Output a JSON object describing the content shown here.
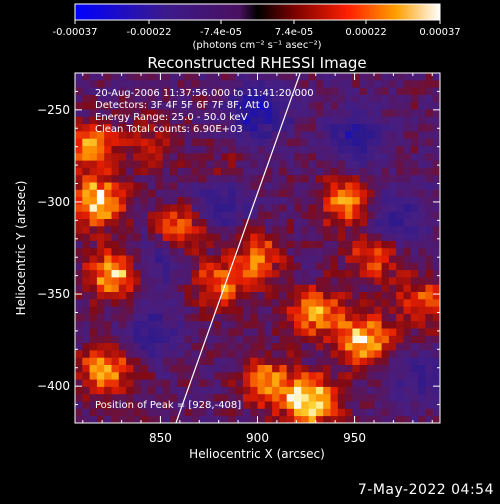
{
  "colorbar": {
    "tick_labels": [
      "-0.00037",
      "-0.00022",
      "-7.4e-05",
      "7.4e-05",
      "0.00022",
      "0.00037"
    ],
    "tick_values": [
      -0.00037,
      -0.00022,
      -7.4e-05,
      7.4e-05,
      0.00022,
      0.00037
    ],
    "range": [
      -0.00037,
      0.00037
    ],
    "units": "(photons cm⁻² s⁻¹ asec⁻²)"
  },
  "chart_data": {
    "type": "heatmap",
    "title": "Reconstructed RHESSI Image",
    "xlabel": "Heliocentric X (arcsec)",
    "ylabel": "Heliocentric Y (arcsec)",
    "xlim": [
      806,
      994
    ],
    "ylim": [
      -420,
      -230
    ],
    "xticks": [
      850,
      900,
      950
    ],
    "yticks": [
      -250,
      -300,
      -350,
      -400
    ],
    "annotations": [
      "20-Aug-2006 11:37:56.000 to 11:41:20.000",
      "Detectors: 3F 4F 5F 6F 7F 8F, Att 0",
      "Energy Range: 25.0 - 50.0 keV",
      "Clean     Total counts: 6.90E+03"
    ],
    "peak_label": "Position of Peak = [928,-408]",
    "limb_line": [
      [
        858,
        -420
      ],
      [
        922,
        -230
      ]
    ],
    "bright_regions": [
      {
        "x": 818,
        "y": -300,
        "level": 0.95
      },
      {
        "x": 826,
        "y": -340,
        "level": 0.85
      },
      {
        "x": 814,
        "y": -270,
        "level": 0.7
      },
      {
        "x": 822,
        "y": -392,
        "level": 0.8
      },
      {
        "x": 860,
        "y": -315,
        "level": 0.75
      },
      {
        "x": 880,
        "y": -345,
        "level": 0.65
      },
      {
        "x": 900,
        "y": -330,
        "level": 0.6
      },
      {
        "x": 945,
        "y": -300,
        "level": 0.7
      },
      {
        "x": 960,
        "y": -330,
        "level": 0.6
      },
      {
        "x": 930,
        "y": -360,
        "level": 0.75
      },
      {
        "x": 955,
        "y": -375,
        "level": 0.9
      },
      {
        "x": 928,
        "y": -408,
        "level": 1.0
      },
      {
        "x": 905,
        "y": -398,
        "level": 0.7
      },
      {
        "x": 985,
        "y": -355,
        "level": 0.55
      },
      {
        "x": 845,
        "y": -268,
        "level": 0.35
      },
      {
        "x": 880,
        "y": -285,
        "level": 0.3
      }
    ],
    "dark_regions": [
      {
        "x": 900,
        "y": -250,
        "level": -0.8
      },
      {
        "x": 880,
        "y": -300,
        "level": -0.6
      },
      {
        "x": 950,
        "y": -265,
        "level": -0.6
      },
      {
        "x": 970,
        "y": -310,
        "level": -0.55
      },
      {
        "x": 850,
        "y": -330,
        "level": -0.5
      },
      {
        "x": 845,
        "y": -370,
        "level": -0.45
      },
      {
        "x": 985,
        "y": -395,
        "level": -0.4
      }
    ]
  },
  "timestamp": "7-May-2022 04:54"
}
